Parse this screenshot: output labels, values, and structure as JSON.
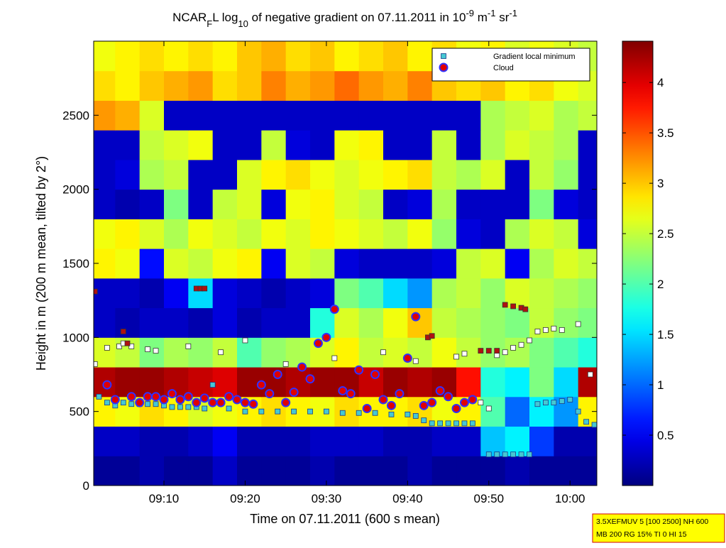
{
  "chart_data": {
    "type": "heatmap",
    "title_parts": [
      {
        "text": "NCAR",
        "script": "normal"
      },
      {
        "text": "F",
        "script": "sub"
      },
      {
        "text": "L log",
        "script": "normal"
      },
      {
        "text": "10",
        "script": "sub"
      },
      {
        "text": " of negative gradient on 07.11.2011 in 10",
        "script": "normal"
      },
      {
        "text": "-9",
        "script": "super"
      },
      {
        "text": " m",
        "script": "normal"
      },
      {
        "text": "-1",
        "script": "super"
      },
      {
        "text": " sr",
        "script": "normal"
      },
      {
        "text": "-1",
        "script": "super"
      }
    ],
    "x_label": "Time on 07.11.2011 (600 s mean)",
    "y_label": "Height in m (200 m mean, tilted by 2°)",
    "xlim": [
      1.35,
      63.3
    ],
    "xticks": [
      {
        "value": 10,
        "label": "09:10"
      },
      {
        "value": 20,
        "label": "09:20"
      },
      {
        "value": 30,
        "label": "09:30"
      },
      {
        "value": 40,
        "label": "09:40"
      },
      {
        "value": 50,
        "label": "09:50"
      },
      {
        "value": 60,
        "label": "10:00"
      }
    ],
    "ylim": [
      0,
      3000
    ],
    "yticks": [
      0,
      500,
      1000,
      1500,
      2000,
      2500
    ],
    "colormap": "jet",
    "clim": [
      0,
      4.41
    ],
    "cticks": [
      0.5,
      1,
      1.5,
      2,
      2.5,
      3,
      3.5,
      4
    ],
    "x_edges": [
      1.35,
      4,
      7,
      10,
      13,
      16,
      19,
      22,
      25,
      28,
      31,
      34,
      37,
      40,
      43,
      46,
      49,
      52,
      55,
      58,
      61,
      63.3
    ],
    "y_edges": [
      0,
      200,
      400,
      600,
      800,
      1000,
      1200,
      1400,
      1600,
      1800,
      2000,
      2200,
      2400,
      2600,
      2800,
      3000
    ],
    "z": [
      [
        0.1,
        0.1,
        0.2,
        0.1,
        0.1,
        0.3,
        0.1,
        0.1,
        0.1,
        0.2,
        0.1,
        0.1,
        0.1,
        0.2,
        0.1,
        0.1,
        0.1,
        0.2,
        0.1,
        0.1,
        0.1
      ],
      [
        0.3,
        0.3,
        0.2,
        0.2,
        0.3,
        0.5,
        0.2,
        0.2,
        0.2,
        0.3,
        0.3,
        0.3,
        0.2,
        0.2,
        0.3,
        0.3,
        1.4,
        1.6,
        0.8,
        0.2,
        0.2
      ],
      [
        2.8,
        2.7,
        2.9,
        2.8,
        2.6,
        2.7,
        2.8,
        2.9,
        2.8,
        2.7,
        2.9,
        2.8,
        2.8,
        2.9,
        2.7,
        2.8,
        2.0,
        1.0,
        1.6,
        1.2,
        2.8
      ],
      [
        4.2,
        4.3,
        4.3,
        4.2,
        4.1,
        4.0,
        4.3,
        4.3,
        4.2,
        4.3,
        4.3,
        4.1,
        4.3,
        4.2,
        4.3,
        3.8,
        1.8,
        1.6,
        2.2,
        1.5,
        4.2
      ],
      [
        2.6,
        2.5,
        2.2,
        2.4,
        2.3,
        2.5,
        2.0,
        2.3,
        2.4,
        2.6,
        2.8,
        2.5,
        2.6,
        2.5,
        2.7,
        2.5,
        2.3,
        2.4,
        2.2,
        2.0,
        1.8
      ],
      [
        0.3,
        0.2,
        0.3,
        0.3,
        0.2,
        0.4,
        0.2,
        0.3,
        0.3,
        1.8,
        2.6,
        2.4,
        2.7,
        3.0,
        2.5,
        2.4,
        2.3,
        2.2,
        2.5,
        2.3,
        2.2
      ],
      [
        0.3,
        0.3,
        0.2,
        0.5,
        1.5,
        0.4,
        0.3,
        0.2,
        0.3,
        0.4,
        2.2,
        2.0,
        1.5,
        1.2,
        2.4,
        2.5,
        2.3,
        2.6,
        2.5,
        2.4,
        2.3
      ],
      [
        2.8,
        2.7,
        0.6,
        2.6,
        2.5,
        2.7,
        2.8,
        0.5,
        2.6,
        2.5,
        0.4,
        0.3,
        0.3,
        0.3,
        0.4,
        2.5,
        2.6,
        0.5,
        2.4,
        2.6,
        2.5
      ],
      [
        2.7,
        2.8,
        2.6,
        2.4,
        2.7,
        2.6,
        2.5,
        2.7,
        2.6,
        2.8,
        2.7,
        2.6,
        2.5,
        2.7,
        2.3,
        0.4,
        0.3,
        2.4,
        2.6,
        2.5,
        0.4
      ],
      [
        0.3,
        0.2,
        0.3,
        2.2,
        0.3,
        2.5,
        2.6,
        0.4,
        2.7,
        2.8,
        2.6,
        2.5,
        0.3,
        0.4,
        2.4,
        0.3,
        0.3,
        0.3,
        2.2,
        0.4,
        0.3
      ],
      [
        0.3,
        0.4,
        2.4,
        2.5,
        0.3,
        0.3,
        2.6,
        2.8,
        2.9,
        2.7,
        2.6,
        2.7,
        2.8,
        2.9,
        2.5,
        2.4,
        2.6,
        0.3,
        2.5,
        2.3,
        0.3
      ],
      [
        0.3,
        0.3,
        2.5,
        2.6,
        2.7,
        0.3,
        0.3,
        2.5,
        0.4,
        0.3,
        2.7,
        2.8,
        0.3,
        0.3,
        2.5,
        0.3,
        2.4,
        2.6,
        2.5,
        2.4,
        0.3
      ],
      [
        3.2,
        3.1,
        2.6,
        0.3,
        0.3,
        0.3,
        0.3,
        0.3,
        0.3,
        0.3,
        0.3,
        0.3,
        0.3,
        0.3,
        0.3,
        0.3,
        2.4,
        2.5,
        2.6,
        2.4,
        2.5
      ],
      [
        2.9,
        2.8,
        3.0,
        3.1,
        3.2,
        2.9,
        3.0,
        3.3,
        3.1,
        3.2,
        3.4,
        3.2,
        3.1,
        3.3,
        3.0,
        2.9,
        3.0,
        2.8,
        2.9,
        2.7,
        2.6
      ],
      [
        2.7,
        2.8,
        2.9,
        2.8,
        2.9,
        2.8,
        3.0,
        3.1,
        2.9,
        3.0,
        2.8,
        2.9,
        3.0,
        2.8,
        2.9,
        2.7,
        2.8,
        2.6,
        2.7,
        2.6,
        2.5
      ]
    ],
    "legend": "upper right",
    "series": [
      {
        "name": "Gradient local minimum",
        "marker": "square",
        "color": "#46c8d2",
        "edge": "#1a3a8a",
        "x": [
          2,
          3,
          4,
          5,
          6,
          7,
          8,
          9,
          10,
          11,
          12,
          13,
          14,
          15,
          16,
          18,
          20,
          22,
          24,
          26,
          28,
          30,
          32,
          34,
          36,
          38,
          40,
          41,
          42,
          43,
          44,
          45,
          46,
          47,
          48,
          50,
          51,
          52,
          53,
          54,
          55,
          56,
          57,
          58,
          59,
          60,
          61,
          62,
          63
        ],
        "y": [
          600,
          560,
          540,
          560,
          550,
          550,
          550,
          550,
          540,
          530,
          530,
          530,
          530,
          520,
          680,
          520,
          500,
          500,
          500,
          500,
          500,
          500,
          490,
          490,
          490,
          480,
          480,
          470,
          440,
          420,
          420,
          420,
          420,
          420,
          420,
          210,
          210,
          210,
          210,
          210,
          210,
          550,
          560,
          560,
          570,
          580,
          500,
          430,
          410
        ]
      },
      {
        "marker": "square",
        "color": "#ffffff",
        "edge": "#333333",
        "x": [
          1.5,
          3,
          4.5,
          5,
          6,
          8,
          9,
          13,
          17,
          20,
          25,
          31,
          37,
          41,
          46,
          47,
          48,
          49,
          50,
          51,
          52,
          53,
          54,
          55,
          56,
          57,
          58,
          59,
          61,
          62.5
        ],
        "y": [
          820,
          930,
          940,
          960,
          940,
          920,
          910,
          940,
          900,
          980,
          820,
          860,
          900,
          840,
          870,
          890,
          580,
          560,
          520,
          880,
          900,
          930,
          950,
          980,
          1040,
          1050,
          1060,
          1050,
          1090,
          750
        ]
      },
      {
        "marker": "square",
        "color": "#b01010",
        "edge": "#333333",
        "x": [
          1.5,
          5,
          5.5,
          14,
          14.5,
          15,
          42.5,
          43,
          49,
          50,
          51,
          52,
          53,
          54,
          54.5
        ],
        "y": [
          1310,
          1040,
          960,
          1330,
          1330,
          1330,
          1000,
          1010,
          910,
          910,
          910,
          1220,
          1210,
          1200,
          1190
        ]
      },
      {
        "name": "Cloud",
        "marker": "circle",
        "color": "#e00000",
        "edge": "#3030ff",
        "x": [
          3,
          4,
          6,
          7,
          8,
          9,
          10,
          11,
          12,
          13,
          14,
          15,
          16,
          17,
          18,
          19,
          20,
          21,
          22,
          23,
          24,
          25,
          26,
          27,
          28,
          29,
          30,
          31,
          32,
          33,
          34,
          35,
          36,
          37,
          38,
          39,
          40,
          41,
          42,
          43,
          44,
          45,
          46,
          47,
          48
        ],
        "y": [
          680,
          580,
          600,
          560,
          600,
          600,
          580,
          620,
          580,
          600,
          560,
          590,
          560,
          560,
          600,
          580,
          560,
          550,
          680,
          620,
          750,
          560,
          630,
          800,
          720,
          960,
          1000,
          1190,
          640,
          620,
          780,
          520,
          750,
          580,
          540,
          620,
          860,
          1140,
          540,
          560,
          640,
          600,
          520,
          560,
          580
        ]
      }
    ],
    "note_lines": [
      "3.5XEFMUV 5 [100 2500] NH 600",
      "MB 200 RG 15% TI 0 HI 15"
    ]
  }
}
